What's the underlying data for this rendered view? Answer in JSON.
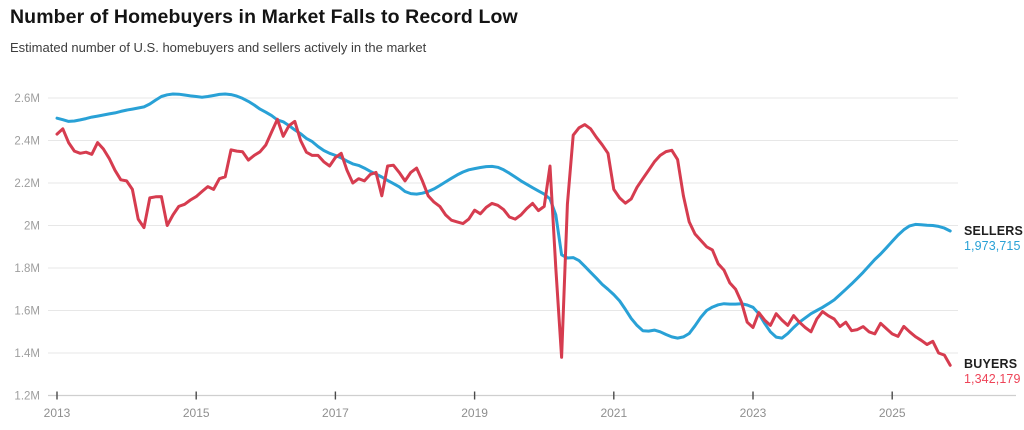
{
  "header": {
    "title": "Number of Homebuyers in Market Falls to Record Low",
    "subtitle": "Estimated number of U.S. homebuyers and sellers actively in the market"
  },
  "colors": {
    "sellers": "#29A1D6",
    "buyers": "#D63C4F",
    "sellers_value_text": "#29A1D6",
    "buyers_value_text": "#EE4458",
    "end_label_text": "#1f1f1f",
    "grid": "#e7e7e7",
    "axis": "#cfcfcf",
    "x_tick": "#4a4a4a",
    "x_tick_label": "#8f8f8f",
    "y_tick_label": "#9e9e9e"
  },
  "chart_data": {
    "type": "line",
    "title": "Number of Homebuyers in Market Falls to Record Low",
    "subtitle": "Estimated number of U.S. homebuyers and sellers actively in the market",
    "unit": "millions of people",
    "frequency": "monthly",
    "start": "2013-01",
    "end": "2025-11",
    "xlim_years": [
      2013,
      2026
    ],
    "ylim": [
      1.2,
      2.6
    ],
    "grid": true,
    "legend_position": "right-end-labels",
    "y_ticks": [
      {
        "label": "2.6M",
        "value": 2.6
      },
      {
        "label": "2.4M",
        "value": 2.4
      },
      {
        "label": "2.2M",
        "value": 2.2
      },
      {
        "label": "2M",
        "value": 2.0
      },
      {
        "label": "1.8M",
        "value": 1.8
      },
      {
        "label": "1.6M",
        "value": 1.6
      },
      {
        "label": "1.4M",
        "value": 1.4
      },
      {
        "label": "1.2M",
        "value": 1.2
      }
    ],
    "x_ticks": [
      {
        "label": "2013",
        "year": 2013
      },
      {
        "label": "2015",
        "year": 2015
      },
      {
        "label": "2017",
        "year": 2017
      },
      {
        "label": "2019",
        "year": 2019
      },
      {
        "label": "2021",
        "year": 2021
      },
      {
        "label": "2023",
        "year": 2023
      },
      {
        "label": "2025",
        "year": 2025
      }
    ],
    "series": [
      {
        "name": "SELLERS",
        "end_label": "SELLERS",
        "end_value": "1,973,715",
        "color_key": "sellers",
        "values": [
          2.505,
          2.498,
          2.49,
          2.492,
          2.497,
          2.503,
          2.51,
          2.515,
          2.52,
          2.525,
          2.53,
          2.537,
          2.543,
          2.548,
          2.553,
          2.558,
          2.572,
          2.59,
          2.607,
          2.615,
          2.619,
          2.618,
          2.614,
          2.61,
          2.607,
          2.604,
          2.607,
          2.612,
          2.617,
          2.619,
          2.616,
          2.609,
          2.598,
          2.584,
          2.567,
          2.548,
          2.533,
          2.517,
          2.497,
          2.488,
          2.47,
          2.45,
          2.432,
          2.41,
          2.395,
          2.372,
          2.353,
          2.34,
          2.33,
          2.318,
          2.303,
          2.29,
          2.283,
          2.27,
          2.255,
          2.242,
          2.228,
          2.212,
          2.197,
          2.182,
          2.16,
          2.15,
          2.148,
          2.152,
          2.16,
          2.172,
          2.188,
          2.205,
          2.222,
          2.238,
          2.252,
          2.262,
          2.268,
          2.273,
          2.277,
          2.278,
          2.274,
          2.262,
          2.246,
          2.228,
          2.21,
          2.194,
          2.178,
          2.163,
          2.148,
          2.125,
          2.05,
          1.862,
          1.847,
          1.849,
          1.835,
          1.808,
          1.78,
          1.752,
          1.723,
          1.7,
          1.675,
          1.645,
          1.605,
          1.563,
          1.53,
          1.505,
          1.503,
          1.508,
          1.5,
          1.487,
          1.476,
          1.47,
          1.476,
          1.492,
          1.528,
          1.568,
          1.6,
          1.616,
          1.627,
          1.632,
          1.63,
          1.63,
          1.632,
          1.626,
          1.615,
          1.585,
          1.54,
          1.5,
          1.475,
          1.47,
          1.492,
          1.52,
          1.545,
          1.565,
          1.585,
          1.6,
          1.615,
          1.632,
          1.65,
          1.675,
          1.7,
          1.725,
          1.752,
          1.78,
          1.81,
          1.84,
          1.866,
          1.895,
          1.925,
          1.955,
          1.98,
          1.998,
          2.005,
          2.004,
          2.001,
          2.0,
          1.996,
          1.988,
          1.974
        ]
      },
      {
        "name": "BUYERS",
        "end_label": "BUYERS",
        "end_value": "1,342,179",
        "color_key": "buyers",
        "values": [
          2.43,
          2.455,
          2.39,
          2.35,
          2.34,
          2.345,
          2.335,
          2.39,
          2.36,
          2.316,
          2.26,
          2.215,
          2.21,
          2.17,
          2.03,
          1.99,
          2.13,
          2.135,
          2.136,
          2.0,
          2.05,
          2.09,
          2.1,
          2.12,
          2.136,
          2.16,
          2.183,
          2.17,
          2.22,
          2.229,
          2.356,
          2.35,
          2.347,
          2.308,
          2.33,
          2.347,
          2.379,
          2.44,
          2.5,
          2.42,
          2.47,
          2.49,
          2.4,
          2.345,
          2.33,
          2.33,
          2.3,
          2.28,
          2.32,
          2.34,
          2.26,
          2.2,
          2.22,
          2.21,
          2.24,
          2.25,
          2.14,
          2.28,
          2.284,
          2.25,
          2.21,
          2.25,
          2.27,
          2.21,
          2.14,
          2.11,
          2.09,
          2.05,
          2.025,
          2.017,
          2.009,
          2.03,
          2.072,
          2.055,
          2.085,
          2.104,
          2.095,
          2.075,
          2.04,
          2.03,
          2.05,
          2.08,
          2.104,
          2.07,
          2.09,
          2.28,
          1.8,
          1.38,
          2.1,
          2.425,
          2.46,
          2.475,
          2.455,
          2.415,
          2.38,
          2.34,
          2.17,
          2.13,
          2.105,
          2.125,
          2.18,
          2.22,
          2.26,
          2.3,
          2.33,
          2.348,
          2.354,
          2.31,
          2.14,
          2.017,
          1.96,
          1.93,
          1.9,
          1.885,
          1.82,
          1.79,
          1.73,
          1.7,
          1.64,
          1.545,
          1.52,
          1.59,
          1.555,
          1.53,
          1.585,
          1.555,
          1.53,
          1.576,
          1.545,
          1.52,
          1.5,
          1.56,
          1.595,
          1.575,
          1.56,
          1.524,
          1.545,
          1.505,
          1.51,
          1.524,
          1.5,
          1.49,
          1.54,
          1.515,
          1.49,
          1.478,
          1.525,
          1.5,
          1.477,
          1.46,
          1.44,
          1.455,
          1.4,
          1.39,
          1.342
        ]
      }
    ]
  }
}
